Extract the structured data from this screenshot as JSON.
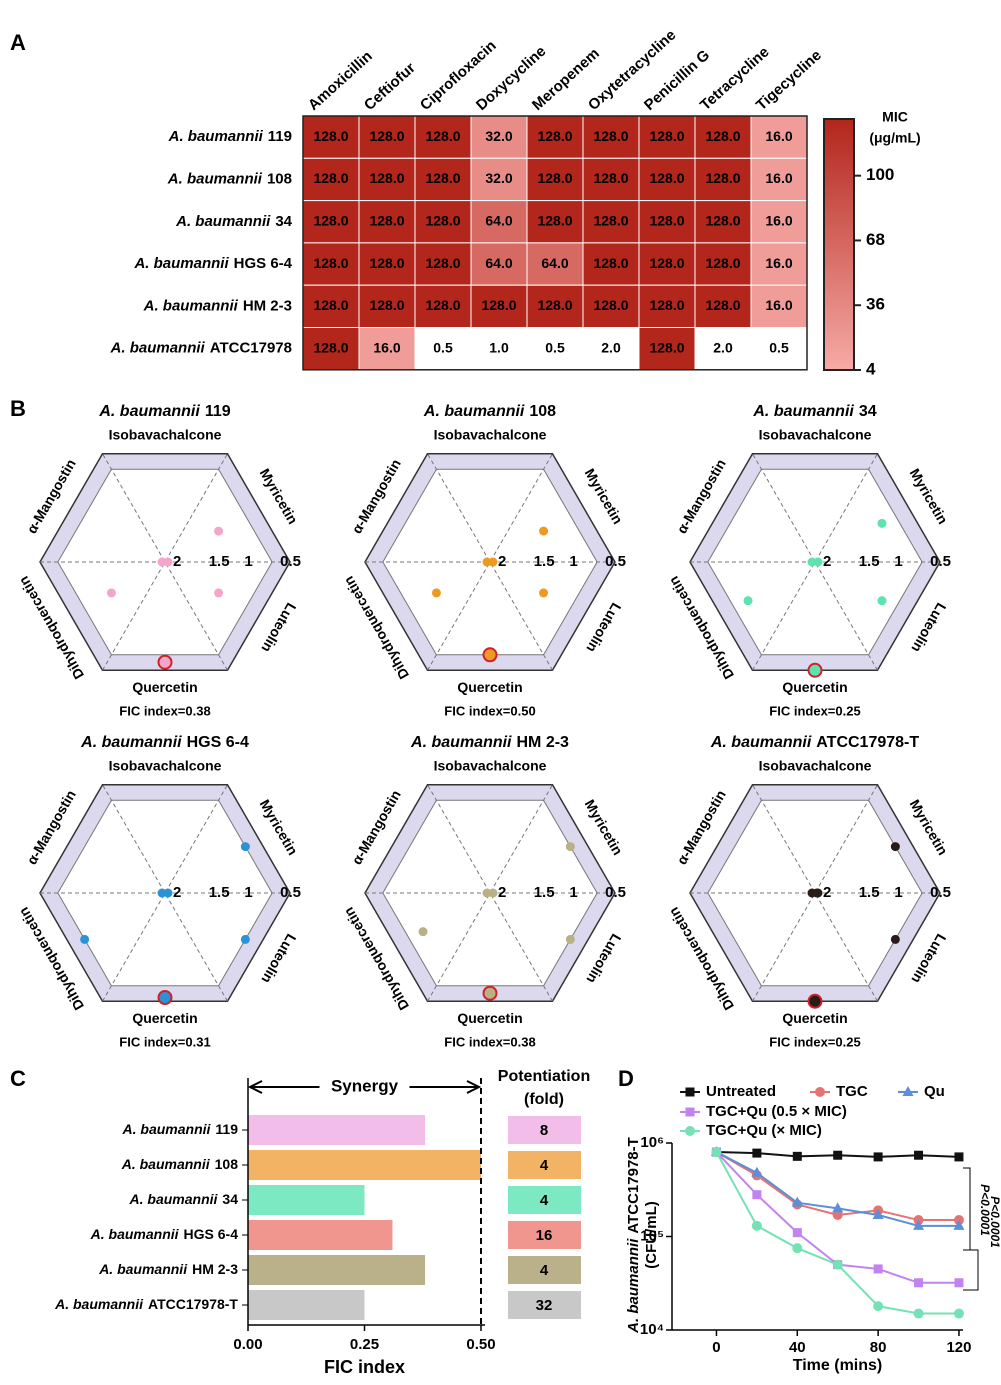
{
  "chart_data": [
    {
      "type": "heatmap",
      "panel": "A",
      "columns": [
        "Amoxicillin",
        "Ceftiofur",
        "Ciprofloxacin",
        "Doxycycline",
        "Meropenem",
        "Oxytetracycline",
        "Penicillin G",
        "Tetracycline",
        "Tigecycline"
      ],
      "rows": [
        {
          "species": "A. baumannii",
          "strain": "119"
        },
        {
          "species": "A. baumannii",
          "strain": "108"
        },
        {
          "species": "A. baumannii",
          "strain": "34"
        },
        {
          "species": "A. baumannii",
          "strain": "HGS 6-4"
        },
        {
          "species": "A. baumannii",
          "strain": "HM 2-3"
        },
        {
          "species": "A. baumannii",
          "strain": "ATCC17978"
        }
      ],
      "values": [
        [
          128,
          128,
          128,
          32,
          128,
          128,
          128,
          128,
          16
        ],
        [
          128,
          128,
          128,
          32,
          128,
          128,
          128,
          128,
          16
        ],
        [
          128,
          128,
          128,
          64,
          128,
          128,
          128,
          128,
          16
        ],
        [
          128,
          128,
          128,
          64,
          64,
          128,
          128,
          128,
          16
        ],
        [
          128,
          128,
          128,
          128,
          128,
          128,
          128,
          128,
          16
        ],
        [
          128,
          16,
          0.5,
          1,
          0.5,
          2,
          128,
          2,
          0.5
        ]
      ],
      "value_labels": [
        [
          "128.0",
          "128.0",
          "128.0",
          "32.0",
          "128.0",
          "128.0",
          "128.0",
          "128.0",
          "16.0"
        ],
        [
          "128.0",
          "128.0",
          "128.0",
          "32.0",
          "128.0",
          "128.0",
          "128.0",
          "128.0",
          "16.0"
        ],
        [
          "128.0",
          "128.0",
          "128.0",
          "64.0",
          "128.0",
          "128.0",
          "128.0",
          "128.0",
          "16.0"
        ],
        [
          "128.0",
          "128.0",
          "128.0",
          "64.0",
          "64.0",
          "128.0",
          "128.0",
          "128.0",
          "16.0"
        ],
        [
          "128.0",
          "128.0",
          "128.0",
          "128.0",
          "128.0",
          "128.0",
          "128.0",
          "128.0",
          "16.0"
        ],
        [
          "128.0",
          "16.0",
          "0.5",
          "1.0",
          "0.5",
          "2.0",
          "128.0",
          "2.0",
          "0.5"
        ]
      ],
      "colorbar_title": [
        "MIC",
        "(μg/mL)"
      ],
      "clim": [
        4,
        128
      ],
      "cticks": [
        4,
        36,
        68,
        100
      ],
      "low_color": "#f7aaa6",
      "high_color": "#b2261c",
      "below_color": "#ffffff"
    },
    {
      "type": "radar",
      "panel": "B",
      "axes": [
        "Isobavachalcone",
        "Myricetin",
        "Luteolin",
        "Quercetin",
        "Dihydroquercetin",
        "α-Mangostin"
      ],
      "axis_colors": [
        "#000000",
        "#000000",
        "#000000",
        "#d0202a",
        "#000000",
        "#000000"
      ],
      "rlim": [
        2,
        0.25
      ],
      "rticks": [
        2,
        1.5,
        1,
        0.5
      ],
      "band_color": "#dcd9ee",
      "plots": [
        {
          "title": {
            "species": "A. baumannii",
            "strain": "119"
          },
          "values": [
            2,
            1,
            1,
            0.38,
            1,
            2
          ],
          "color": "#f2a6cc",
          "annotation": "FIC index=0.38"
        },
        {
          "title": {
            "species": "A. baumannii",
            "strain": "108"
          },
          "values": [
            2,
            1,
            1,
            0.5,
            1,
            2
          ],
          "color": "#ee9a22",
          "annotation": "FIC index=0.50"
        },
        {
          "title": {
            "species": "A. baumannii",
            "strain": "34"
          },
          "values": [
            2,
            0.75,
            0.75,
            0.25,
            0.75,
            2
          ],
          "color": "#5ee3b0",
          "annotation": "FIC index=0.25"
        },
        {
          "title": {
            "species": "A. baumannii",
            "strain": "HGS 6-4"
          },
          "values": [
            2,
            0.5,
            0.5,
            0.31,
            0.5,
            2
          ],
          "color": "#2a93d8",
          "annotation": "FIC index=0.31"
        },
        {
          "title": {
            "species": "A. baumannii",
            "strain": "HM 2-3"
          },
          "values": [
            2,
            0.5,
            0.5,
            0.38,
            0.75,
            2
          ],
          "color": "#b9b184",
          "annotation": "FIC index=0.38"
        },
        {
          "title": {
            "species": "A. baumannii",
            "strain": "ATCC17978-T"
          },
          "values": [
            2,
            0.5,
            0.5,
            0.25,
            2,
            2
          ],
          "color": "#2a1a1a",
          "annotation": "FIC index=0.25"
        }
      ]
    },
    {
      "type": "hbar",
      "panel": "C",
      "categories": [
        {
          "species": "A. baumannii",
          "strain": "119"
        },
        {
          "species": "A. baumannii",
          "strain": "108"
        },
        {
          "species": "A. baumannii",
          "strain": "34"
        },
        {
          "species": "A. baumannii",
          "strain": "HGS 6-4"
        },
        {
          "species": "A. baumannii",
          "strain": "HM 2-3"
        },
        {
          "species": "A. baumannii",
          "strain": "ATCC17978-T"
        }
      ],
      "values": [
        0.38,
        0.5,
        0.25,
        0.31,
        0.38,
        0.25
      ],
      "colors": [
        "#f2bde9",
        "#f2b364",
        "#7de9c3",
        "#f1958f",
        "#bab18a",
        "#c8c8c8"
      ],
      "xlim": [
        0,
        0.5
      ],
      "xticks": [
        {
          "value": 0,
          "label": "0.00"
        },
        {
          "value": 0.25,
          "label": "0.25"
        },
        {
          "value": 0.5,
          "label": "0.50"
        }
      ],
      "xlabel": "FIC index",
      "threshold": 0.5,
      "annotation": "Synergy",
      "potentiation_title": [
        "Potentiation",
        "(fold)"
      ],
      "potentiation": [
        8,
        4,
        4,
        16,
        4,
        32
      ]
    },
    {
      "type": "line",
      "panel": "D",
      "log_y": true,
      "x": [
        0,
        20,
        40,
        60,
        80,
        100,
        120
      ],
      "xlim": [
        -22,
        122
      ],
      "xticks": [
        0,
        40,
        80,
        120
      ],
      "xlabel": "Time (mins)",
      "ylim": [
        10000,
        1000000
      ],
      "yticks": [
        {
          "value": 10000,
          "label": "10⁴"
        },
        {
          "value": 100000,
          "label": "10⁵"
        },
        {
          "value": 1000000,
          "label": "10⁶"
        }
      ],
      "ylabel": {
        "species": "A. baumannii",
        "strain": "ATCC17978-T",
        "unit": "(CFU/mL)"
      },
      "series": [
        {
          "name": "Untreated",
          "color": "#111111",
          "marker": "square",
          "values": [
            800000,
            780000,
            720000,
            740000,
            710000,
            740000,
            710000
          ]
        },
        {
          "name": "TGC",
          "color": "#e57373",
          "marker": "circle",
          "values": [
            800000,
            450000,
            220000,
            170000,
            190000,
            150000,
            150000
          ]
        },
        {
          "name": "Qu",
          "color": "#5b8fd8",
          "marker": "triangle",
          "values": [
            800000,
            480000,
            230000,
            200000,
            170000,
            130000,
            130000
          ]
        },
        {
          "name": "TGC+Qu (0.5 × MIC)",
          "color": "#c283f0",
          "marker": "square",
          "values": [
            800000,
            280000,
            110000,
            50000,
            45000,
            32000,
            32000
          ]
        },
        {
          "name": "TGC+Qu (× MIC)",
          "color": "#74e2b4",
          "marker": "circle",
          "values": [
            800000,
            130000,
            75000,
            50000,
            18000,
            15000,
            15000
          ]
        }
      ],
      "annotations": [
        "P<0.0001",
        "P<0.0001"
      ]
    }
  ]
}
